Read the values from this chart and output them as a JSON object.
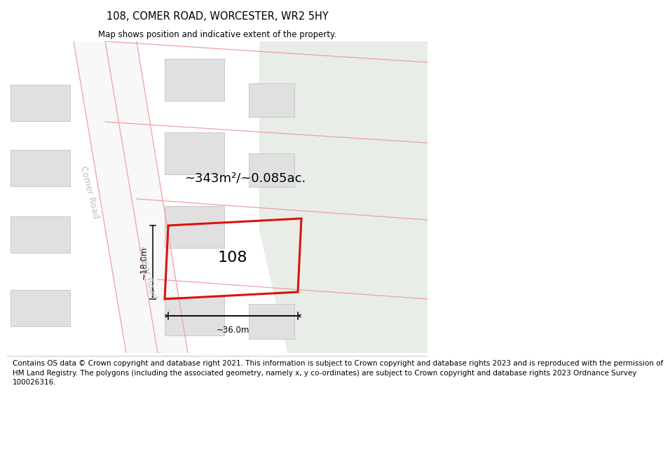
{
  "title": "108, COMER ROAD, WORCESTER, WR2 5HY",
  "subtitle": "Map shows position and indicative extent of the property.",
  "footer": "Contains OS data © Crown copyright and database right 2021. This information is subject to Crown copyright and database rights 2023 and is reproduced with the permission of HM Land Registry. The polygons (including the associated geometry, namely x, y co-ordinates) are subject to Crown copyright and database rights 2023 Ordnance Survey 100026316.",
  "area_label": "~343m²/~0.085ac.",
  "width_label": "~36.0m",
  "height_label": "~18.0m",
  "property_number": "108",
  "white": "#ffffff",
  "map_bg": "#f0f0f0",
  "green_color": "#e8ede8",
  "building_fill": "#e0e0e0",
  "building_edge": "#c8c8c8",
  "road_fill": "#f8f8f8",
  "red_color": "#dd1111",
  "pink_color": "#f0a0a0",
  "road_label_color": "#c0c0c0",
  "title_fontsize": 10.5,
  "subtitle_fontsize": 8.5,
  "footer_fontsize": 7.5,
  "area_fontsize": 13,
  "number_fontsize": 16,
  "road_fontsize": 9,
  "dim_fontsize": 8.5
}
